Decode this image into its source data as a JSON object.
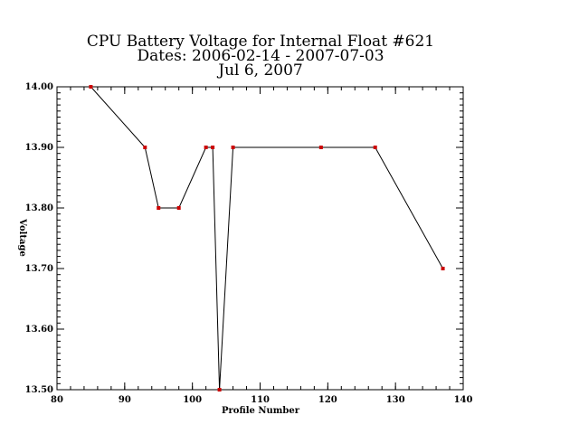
{
  "chart_data": {
    "type": "line",
    "title_lines": [
      "CPU Battery Voltage for Internal Float #621",
      "Dates:  2006-02-14 -  2007-07-03",
      "Jul  6, 2007"
    ],
    "xlabel": "Profile Number",
    "ylabel": "Voltage",
    "xlim": [
      80,
      140
    ],
    "ylim": [
      13.5,
      14.0
    ],
    "x_ticks": [
      80,
      90,
      100,
      110,
      120,
      130,
      140
    ],
    "x_tick_labels": [
      "80",
      "90",
      "100",
      "110",
      "120",
      "130",
      "140"
    ],
    "y_ticks": [
      13.5,
      13.6,
      13.7,
      13.8,
      13.9,
      14.0
    ],
    "y_tick_labels": [
      "13.50",
      "13.60",
      "13.70",
      "13.80",
      "13.90",
      "14.00"
    ],
    "series": [
      {
        "x": [
          85,
          93,
          95,
          98,
          102,
          103,
          104,
          106,
          119,
          127,
          137
        ],
        "y": [
          14.0,
          13.9,
          13.8,
          13.8,
          13.9,
          13.9,
          13.5,
          13.9,
          13.9,
          13.9,
          13.7
        ]
      }
    ],
    "grid": false,
    "colors": {
      "line": "#000000",
      "marker": "#cc0000"
    }
  }
}
